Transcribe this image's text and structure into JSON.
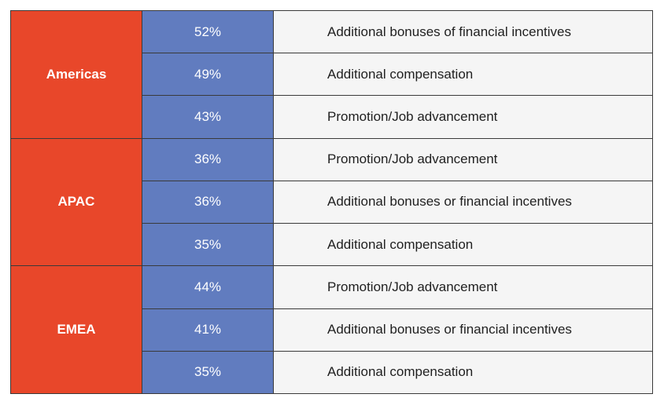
{
  "groups": [
    {
      "region": "Americas",
      "rows": [
        {
          "percent": "52%",
          "label": "Additional bonuses of financial incentives"
        },
        {
          "percent": "49%",
          "label": "Additional compensation"
        },
        {
          "percent": "43%",
          "label": "Promotion/Job advancement"
        }
      ]
    },
    {
      "region": "APAC",
      "rows": [
        {
          "percent": "36%",
          "label": "Promotion/Job advancement"
        },
        {
          "percent": "36%",
          "label": "Additional bonuses or financial incentives"
        },
        {
          "percent": "35%",
          "label": "Additional compensation"
        }
      ]
    },
    {
      "region": "EMEA",
      "rows": [
        {
          "percent": "44%",
          "label": "Promotion/Job advancement"
        },
        {
          "percent": "41%",
          "label": "Additional bonuses or financial incentives"
        },
        {
          "percent": "35%",
          "label": "Additional compensation"
        }
      ]
    }
  ],
  "colors": {
    "region_bg": "#e8472a",
    "percent_bg": "#617cbf",
    "label_bg": "#f5f5f5",
    "border": "#3a3a3a"
  }
}
